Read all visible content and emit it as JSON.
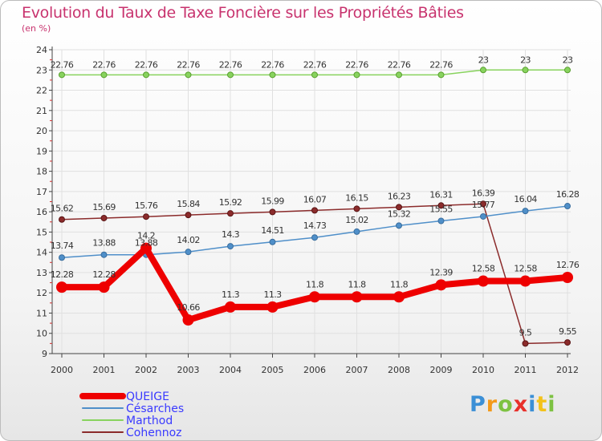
{
  "chart_data": {
    "type": "line",
    "title": "Evolution du Taux de Taxe Foncière sur les Propriétés Bâties",
    "ylabel": "(en %)",
    "xlabel": "",
    "ylim": [
      9,
      24
    ],
    "yticks": [
      "9",
      "10",
      "11",
      "12",
      "13",
      "14",
      "15",
      "16",
      "17",
      "18",
      "19",
      "20",
      "21",
      "22",
      "23",
      "24"
    ],
    "categories": [
      "2000",
      "2001",
      "2002",
      "2003",
      "2004",
      "2005",
      "2006",
      "2007",
      "2008",
      "2009",
      "2010",
      "2011",
      "2012"
    ],
    "series": [
      {
        "name": "QUEIGE",
        "color": "#ee0000",
        "values": [
          12.28,
          12.28,
          14.2,
          10.66,
          11.3,
          11.3,
          11.8,
          11.8,
          11.8,
          12.39,
          12.58,
          12.58,
          12.76
        ],
        "labels": [
          "12.28",
          "12.28",
          "14.2",
          "10.66",
          "11.3",
          "11.3",
          "11.8",
          "11.8",
          "11.8",
          "12.39",
          "12.58",
          "12.58",
          "12.76"
        ]
      },
      {
        "name": "Césarches",
        "color": "#4f8fc9",
        "values": [
          13.74,
          13.88,
          13.88,
          14.02,
          14.3,
          14.51,
          14.73,
          15.02,
          15.32,
          15.55,
          15.77,
          16.04,
          16.28
        ],
        "labels": [
          "13.74",
          "13.88",
          "13.88",
          "14.02",
          "14.3",
          "14.51",
          "14.73",
          "15.02",
          "15.32",
          "15.55",
          "15.77",
          "16.04",
          "16.28"
        ]
      },
      {
        "name": "Marthod",
        "color": "#88d35e",
        "values": [
          22.76,
          22.76,
          22.76,
          22.76,
          22.76,
          22.76,
          22.76,
          22.76,
          22.76,
          22.76,
          23,
          23,
          23
        ],
        "labels": [
          "22.76",
          "22.76",
          "22.76",
          "22.76",
          "22.76",
          "22.76",
          "22.76",
          "22.76",
          "22.76",
          "22.76",
          "23",
          "23",
          "23"
        ]
      },
      {
        "name": "Cohennoz",
        "color": "#8b2b2b",
        "values": [
          15.62,
          15.69,
          15.76,
          15.84,
          15.92,
          15.99,
          16.07,
          16.15,
          16.23,
          16.31,
          16.39,
          9.5,
          9.55
        ],
        "labels": [
          "15.62",
          "15.69",
          "15.76",
          "15.84",
          "15.92",
          "15.99",
          "16.07",
          "16.15",
          "16.23",
          "16.31",
          "16.39",
          "9.5",
          "9.55"
        ]
      }
    ],
    "legend_position": "bottom-left",
    "grid": true
  },
  "logo": {
    "letters": [
      {
        "ch": "P",
        "color": "#3b8fd6"
      },
      {
        "ch": "r",
        "color": "#f39a1a"
      },
      {
        "ch": "o",
        "color": "#7dc242"
      },
      {
        "ch": "x",
        "color": "#e8302a"
      },
      {
        "ch": "i",
        "color": "#3b8fd6"
      },
      {
        "ch": "t",
        "color": "#f3c21a"
      },
      {
        "ch": "i",
        "color": "#7dc242"
      }
    ]
  }
}
